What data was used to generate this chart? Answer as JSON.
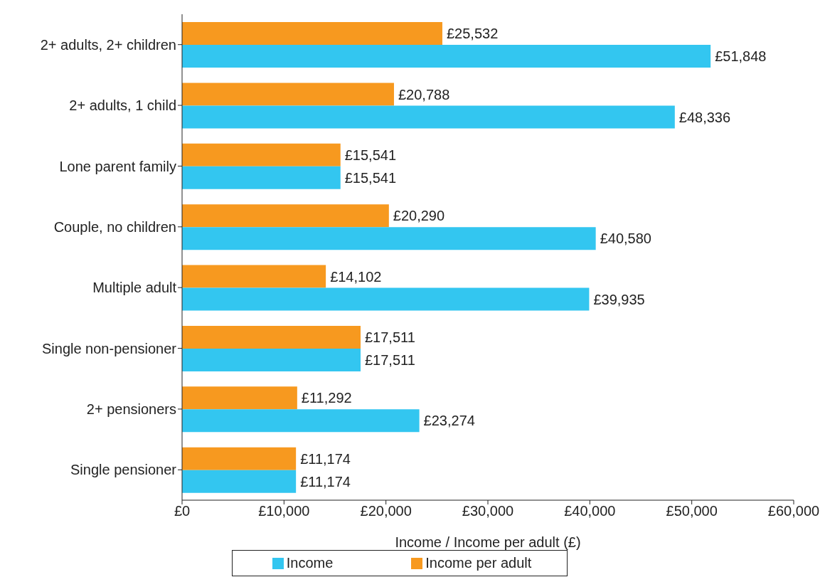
{
  "chart_data": {
    "type": "bar",
    "orientation": "horizontal",
    "xlabel": "Income / Income per adult (£)",
    "categories": [
      "2+ adults, 2+ children",
      "2+ adults, 1 child",
      "Lone parent family",
      "Couple, no children",
      "Multiple adult",
      "Single non-pensioner",
      "2+ pensioners",
      "Single pensioner"
    ],
    "series": [
      {
        "name": "Income",
        "color": "#33c6f0",
        "values": [
          51848,
          48336,
          15541,
          40580,
          39935,
          17511,
          23274,
          11174
        ],
        "value_labels": [
          "£51,848",
          "£48,336",
          "£15,541",
          "£40,580",
          "£39,935",
          "£17,511",
          "£23,274",
          "£11,174"
        ]
      },
      {
        "name": "Income per adult",
        "color": "#f7991f",
        "values": [
          25532,
          20788,
          15541,
          20290,
          14102,
          17511,
          11292,
          11174
        ],
        "value_labels": [
          "£25,532",
          "£20,788",
          "£15,541",
          "£20,290",
          "£14,102",
          "£17,511",
          "£11,292",
          "£11,174"
        ]
      }
    ],
    "xlim": [
      0,
      60000
    ],
    "xticks": [
      {
        "value": 0,
        "label": "£0"
      },
      {
        "value": 10000,
        "label": "£10,000"
      },
      {
        "value": 20000,
        "label": "£20,000"
      },
      {
        "value": 30000,
        "label": "£30,000"
      },
      {
        "value": 40000,
        "label": "£40,000"
      },
      {
        "value": 50000,
        "label": "£50,000"
      },
      {
        "value": 60000,
        "label": "£60,000"
      }
    ],
    "grid": false,
    "legend": "bottom"
  }
}
